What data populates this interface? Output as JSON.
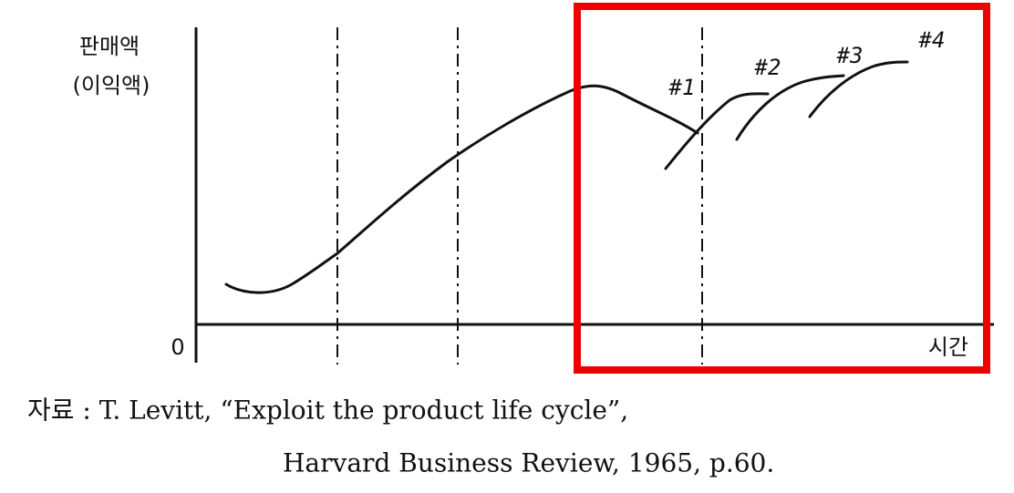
{
  "axis": {
    "y_label": "판매액",
    "y_label_sub": "(이익액)",
    "origin": "0",
    "x_label": "시간"
  },
  "curve_labels": [
    "#1",
    "#2",
    "#3",
    "#4"
  ],
  "source": {
    "line1": "자료 : T. Levitt, “Exploit the product life cycle”,",
    "line2": "Harvard Business Review, 1965, p.60."
  }
}
